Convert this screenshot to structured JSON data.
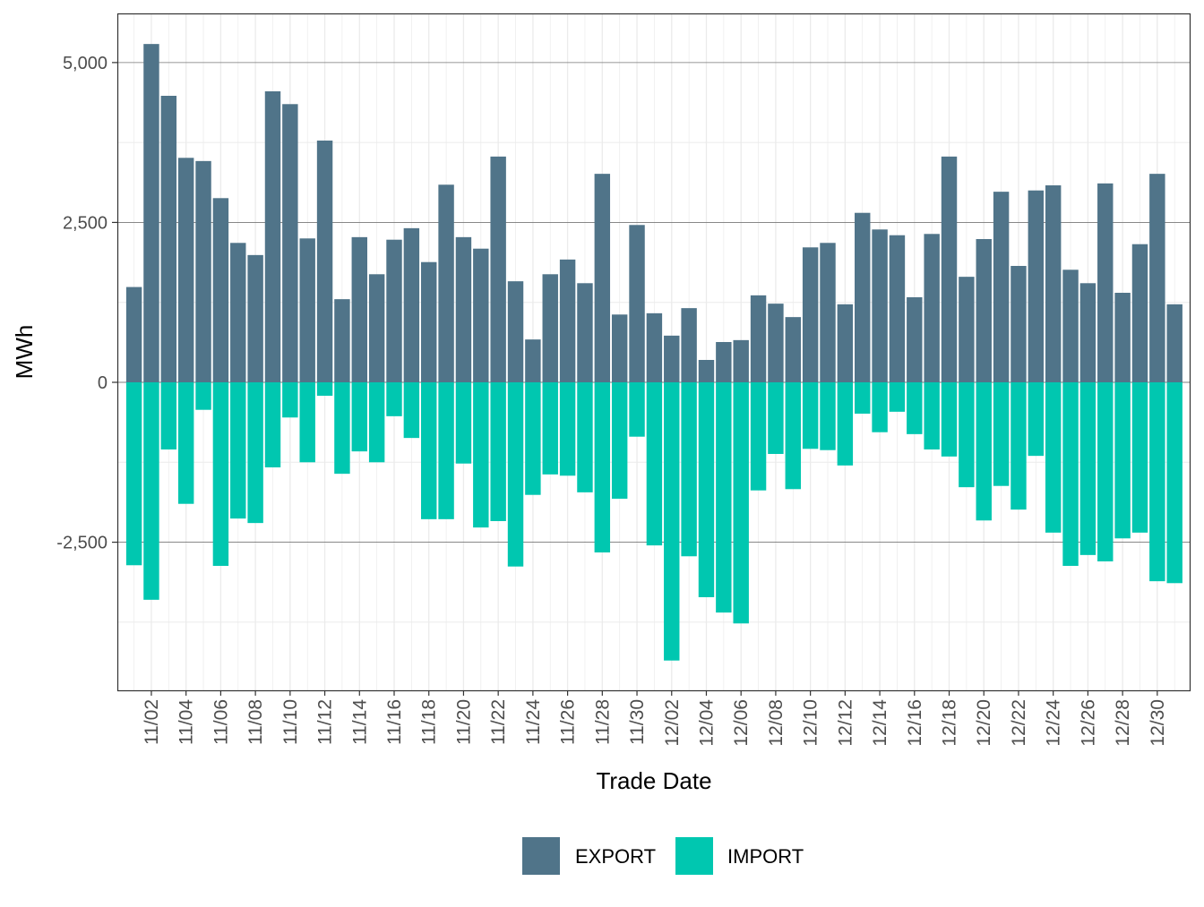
{
  "chart_data": {
    "type": "bar",
    "stacked": true,
    "title": "",
    "xlabel": "Trade Date",
    "ylabel": "MWh",
    "ylim": [
      -4816,
      5768
    ],
    "yticks": [
      -2500,
      0,
      2500,
      5000
    ],
    "ytick_labels": [
      "-2,500",
      "0",
      "2,500",
      "5,000"
    ],
    "grid": true,
    "legend": {
      "placement": "bottom",
      "entries": [
        "EXPORT",
        "IMPORT"
      ]
    },
    "categories": [
      "11/01",
      "11/02",
      "11/03",
      "11/04",
      "11/05",
      "11/06",
      "11/07",
      "11/08",
      "11/09",
      "11/10",
      "11/11",
      "11/12",
      "11/13",
      "11/14",
      "11/15",
      "11/16",
      "11/17",
      "11/18",
      "11/19",
      "11/20",
      "11/21",
      "11/22",
      "11/23",
      "11/24",
      "11/25",
      "11/26",
      "11/27",
      "11/28",
      "11/29",
      "11/30",
      "12/01",
      "12/02",
      "12/03",
      "12/04",
      "12/05",
      "12/06",
      "12/07",
      "12/08",
      "12/09",
      "12/10",
      "12/11",
      "12/12",
      "12/13",
      "12/14",
      "12/15",
      "12/16",
      "12/17",
      "12/18",
      "12/19",
      "12/20",
      "12/21",
      "12/22",
      "12/23",
      "12/24",
      "12/25",
      "12/26",
      "12/27",
      "12/28",
      "12/29",
      "12/30",
      "12/31"
    ],
    "xtick_labels": [
      "11/02",
      "11/04",
      "11/06",
      "11/08",
      "11/10",
      "11/12",
      "11/14",
      "11/16",
      "11/18",
      "11/20",
      "11/22",
      "11/24",
      "11/26",
      "11/28",
      "11/30",
      "12/02",
      "12/04",
      "12/06",
      "12/08",
      "12/10",
      "12/12",
      "12/14",
      "12/16",
      "12/18",
      "12/20",
      "12/22",
      "12/24",
      "12/26",
      "12/28",
      "12/30"
    ],
    "series": [
      {
        "name": "EXPORT",
        "color": "#507489",
        "values": [
          1490,
          5290,
          4480,
          3510,
          3460,
          2880,
          2180,
          1990,
          4550,
          4350,
          2250,
          3780,
          1300,
          2270,
          1690,
          2230,
          2410,
          1880,
          3090,
          2270,
          2090,
          3530,
          1580,
          670,
          1690,
          1920,
          1550,
          3260,
          1060,
          2460,
          1080,
          730,
          1160,
          350,
          630,
          660,
          1360,
          1230,
          1020,
          2110,
          2180,
          1220,
          2650,
          2390,
          2300,
          1330,
          2320,
          3530,
          1650,
          2240,
          2980,
          1820,
          3000,
          3080,
          1760,
          1550,
          3110,
          1400,
          2160,
          3260,
          1220
        ]
      },
      {
        "name": "IMPORT",
        "color": "#00c7b0",
        "values": [
          -2860,
          -3400,
          -1050,
          -1900,
          -430,
          -2870,
          -2130,
          -2200,
          -1330,
          -550,
          -1250,
          -210,
          -1430,
          -1080,
          -1250,
          -530,
          -870,
          -2140,
          -2140,
          -1270,
          -2270,
          -2170,
          -2880,
          -1760,
          -1440,
          -1460,
          -1720,
          -2660,
          -1820,
          -850,
          -2550,
          -4350,
          -2720,
          -3360,
          -3600,
          -3770,
          -1690,
          -1120,
          -1670,
          -1040,
          -1060,
          -1300,
          -490,
          -780,
          -460,
          -810,
          -1050,
          -1160,
          -1640,
          -2160,
          -1620,
          -1990,
          -1150,
          -2350,
          -2870,
          -2700,
          -2800,
          -2440,
          -2350,
          -3110,
          -3140
        ]
      }
    ]
  }
}
